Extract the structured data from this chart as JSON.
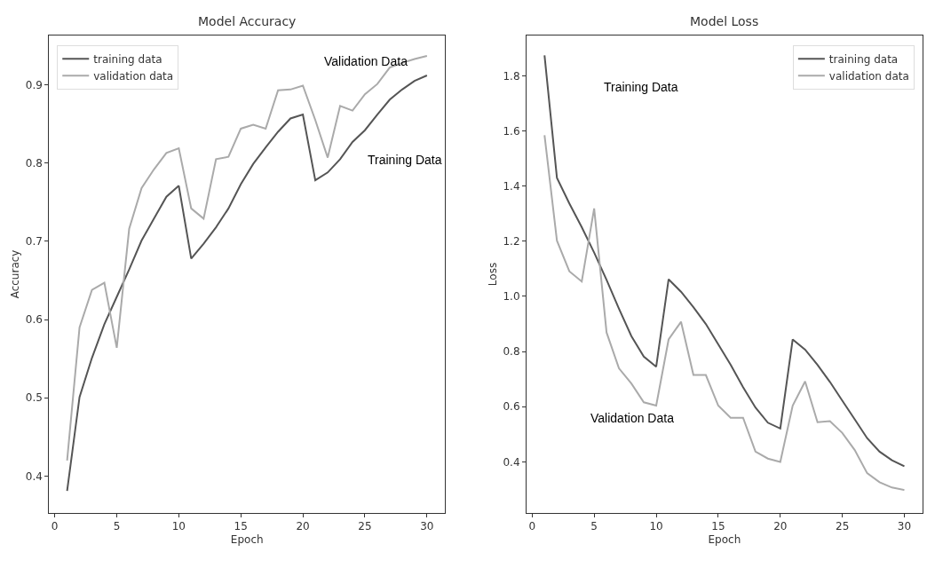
{
  "chart_data": [
    {
      "type": "line",
      "title": "Model Accuracy",
      "xlabel": "Epoch",
      "ylabel": "Accuracy",
      "x": [
        1,
        2,
        3,
        4,
        5,
        6,
        7,
        8,
        9,
        10,
        11,
        12,
        13,
        14,
        15,
        16,
        17,
        18,
        19,
        20,
        21,
        22,
        23,
        24,
        25,
        26,
        27,
        28,
        29,
        30
      ],
      "series": [
        {
          "name": "training data",
          "color": "#555555",
          "values": [
            0.381,
            0.501,
            0.551,
            0.594,
            0.629,
            0.664,
            0.701,
            0.729,
            0.757,
            0.771,
            0.678,
            0.697,
            0.718,
            0.742,
            0.773,
            0.799,
            0.82,
            0.84,
            0.857,
            0.862,
            0.778,
            0.788,
            0.805,
            0.827,
            0.842,
            0.862,
            0.881,
            0.894,
            0.905,
            0.912
          ]
        },
        {
          "name": "validation data",
          "color": "#aaaaaa",
          "values": [
            0.42,
            0.59,
            0.638,
            0.647,
            0.564,
            0.716,
            0.768,
            0.792,
            0.813,
            0.819,
            0.742,
            0.729,
            0.805,
            0.808,
            0.844,
            0.849,
            0.844,
            0.893,
            0.894,
            0.899,
            0.855,
            0.807,
            0.873,
            0.867,
            0.888,
            0.901,
            0.922,
            0.928,
            0.933,
            0.937
          ]
        }
      ],
      "xlim": [
        -0.45,
        31.45
      ],
      "ylim": [
        0.353,
        0.963
      ],
      "xticks": [
        0,
        5,
        10,
        15,
        20,
        25,
        30
      ],
      "yticks": [
        0.4,
        0.5,
        0.6,
        0.7,
        0.8,
        0.9
      ],
      "annotations": [
        "Validation Data",
        "Training Data"
      ],
      "legend": "top left",
      "marker": "none",
      "line_style": "solid"
    },
    {
      "type": "line",
      "title": "Model Loss",
      "xlabel": "Epoch",
      "ylabel": "Loss",
      "x": [
        1,
        2,
        3,
        4,
        5,
        6,
        7,
        8,
        9,
        10,
        11,
        12,
        13,
        14,
        15,
        16,
        17,
        18,
        19,
        20,
        21,
        22,
        23,
        24,
        25,
        26,
        27,
        28,
        29,
        30
      ],
      "series": [
        {
          "name": "training data",
          "color": "#555555",
          "values": [
            1.874,
            1.43,
            1.337,
            1.251,
            1.159,
            1.06,
            0.955,
            0.856,
            0.782,
            0.745,
            1.062,
            1.017,
            0.961,
            0.9,
            0.826,
            0.752,
            0.671,
            0.597,
            0.542,
            0.521,
            0.844,
            0.807,
            0.752,
            0.69,
            0.622,
            0.554,
            0.486,
            0.437,
            0.406,
            0.384
          ]
        },
        {
          "name": "validation data",
          "color": "#aaaaaa",
          "values": [
            1.584,
            1.202,
            1.091,
            1.054,
            1.319,
            0.869,
            0.739,
            0.684,
            0.616,
            0.604,
            0.844,
            0.908,
            0.715,
            0.715,
            0.604,
            0.56,
            0.56,
            0.437,
            0.412,
            0.4,
            0.604,
            0.692,
            0.544,
            0.548,
            0.505,
            0.443,
            0.359,
            0.326,
            0.307,
            0.298
          ]
        }
      ],
      "xlim": [
        -0.45,
        31.45
      ],
      "ylim": [
        0.215,
        1.946
      ],
      "xticks": [
        0,
        5,
        10,
        15,
        20,
        25,
        30
      ],
      "yticks": [
        0.4,
        0.6,
        0.8,
        {
          "value": 1.0,
          "label": "1.0"
        },
        1.2,
        1.4,
        1.6,
        1.8
      ],
      "annotations": [
        "Training Data",
        "Validation Data"
      ],
      "legend": "top right",
      "marker": "none",
      "line_style": "solid"
    }
  ]
}
